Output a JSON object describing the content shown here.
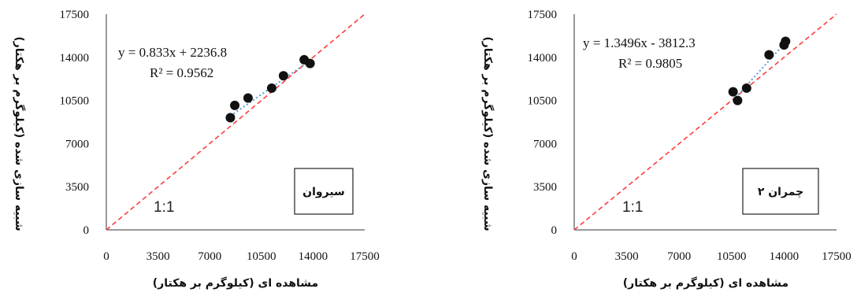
{
  "chart_data": [
    {
      "type": "scatter",
      "site": "سیروان",
      "xlabel": "مشاهده ای (کیلوگرم بر هکتار)",
      "ylabel": "شبیه سازی شده (کیلوگرم بر هکتار)",
      "xlim": [
        0,
        17500
      ],
      "ylim": [
        0,
        17500
      ],
      "xticks": [
        "0",
        "3500",
        "7000",
        "10500",
        "14000",
        "17500"
      ],
      "yticks": [
        "0",
        "3500",
        "7000",
        "10500",
        "14000",
        "17500"
      ],
      "equation": "y = 0.833x + 2236.8",
      "r2": "R² = 0.9562",
      "one_to_one_label": "1:1",
      "trend": {
        "slope": 0.833,
        "intercept": 2236.8
      },
      "points": [
        {
          "x": 8400,
          "y": 9100
        },
        {
          "x": 8700,
          "y": 10100
        },
        {
          "x": 9600,
          "y": 10700
        },
        {
          "x": 11200,
          "y": 11500
        },
        {
          "x": 12000,
          "y": 12500
        },
        {
          "x": 13400,
          "y": 13800
        },
        {
          "x": 13800,
          "y": 13500
        }
      ],
      "colors": {
        "points": "#111111",
        "trend": "#5b9bd5",
        "one_to_one": "#ff3b3b"
      }
    },
    {
      "type": "scatter",
      "site": "چمران ۲",
      "xlabel": "مشاهده ای (کیلوگرم بر هکتار)",
      "ylabel": "شبیه سازی شده (کیلوگرم بر هکتار)",
      "xlim": [
        0,
        17500
      ],
      "ylim": [
        0,
        17500
      ],
      "xticks": [
        "0",
        "3500",
        "7000",
        "10500",
        "14000",
        "17500"
      ],
      "yticks": [
        "0",
        "3500",
        "7000",
        "10500",
        "14000",
        "17500"
      ],
      "equation": "y = 1.3496x - 3812.3",
      "r2": "R² = 0.9805",
      "one_to_one_label": "1:1",
      "trend": {
        "slope": 1.3496,
        "intercept": -3812.3
      },
      "points": [
        {
          "x": 10600,
          "y": 11200
        },
        {
          "x": 10900,
          "y": 10500
        },
        {
          "x": 11500,
          "y": 11500
        },
        {
          "x": 13000,
          "y": 14200
        },
        {
          "x": 14000,
          "y": 15000
        },
        {
          "x": 14100,
          "y": 15300
        }
      ],
      "colors": {
        "points": "#111111",
        "trend": "#5b9bd5",
        "one_to_one": "#ff3b3b"
      }
    }
  ]
}
